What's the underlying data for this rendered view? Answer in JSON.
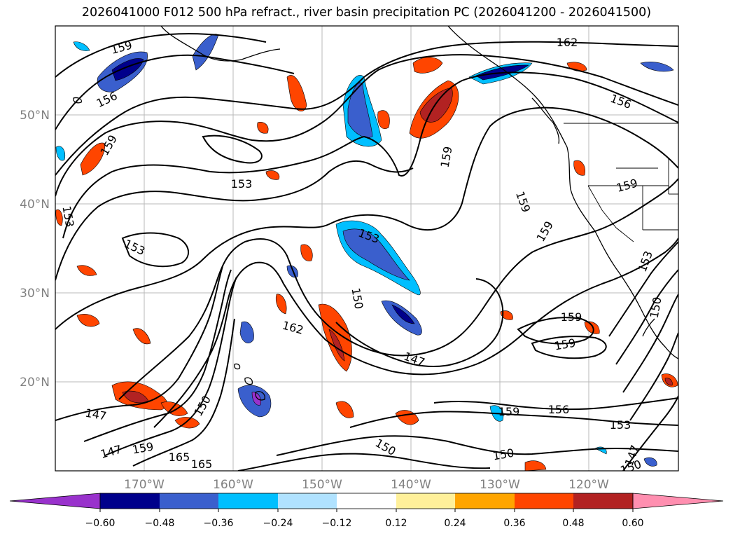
{
  "title": "2026041000 F012 500 hPa refract., river basin precipitation PC (2026041200 - 2026041500)",
  "map": {
    "lon_labels": [
      "170°W",
      "160°W",
      "150°W",
      "140°W",
      "130°W",
      "120°W"
    ],
    "lat_labels": [
      "50°N",
      "40°N",
      "30°N",
      "20°N"
    ],
    "contour_labels": [
      "159",
      "156",
      "159",
      "153",
      "153",
      "153",
      "159",
      "162",
      "156",
      "159",
      "159",
      "159",
      "153",
      "150",
      "147",
      "162",
      "159",
      "159",
      "153",
      "150",
      "147",
      "147",
      "159",
      "165",
      "165",
      "150",
      "150",
      "159",
      "156",
      "153",
      "150",
      "147",
      "150"
    ]
  },
  "colorbar": {
    "ticks": [
      "−0.60",
      "−0.48",
      "−0.36",
      "−0.24",
      "−0.12",
      "0.12",
      "0.24",
      "0.36",
      "0.48",
      "0.60"
    ],
    "colors": [
      "#9932cc",
      "#00008b",
      "#3a5fcd",
      "#00bfff",
      "#b0e2ff",
      "#ffffff",
      "#fff09a",
      "#ffa500",
      "#ff4500",
      "#b22222",
      "#ff8fb0"
    ]
  }
}
